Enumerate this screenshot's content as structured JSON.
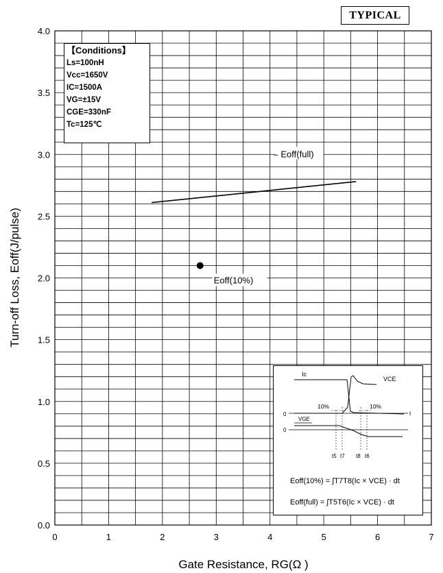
{
  "chart_data": {
    "type": "line",
    "badge": "TYPICAL",
    "xlabel": "Gate Resistance, RG(Ω )",
    "ylabel": "Turn-off Loss, Eoff(J/pulse)",
    "xlim": [
      0,
      7
    ],
    "ylim": [
      0,
      4.0
    ],
    "x_ticks": [
      "0",
      "1",
      "2",
      "3",
      "4",
      "5",
      "6",
      "7"
    ],
    "y_ticks": [
      "0.0",
      "0.5",
      "1.0",
      "1.5",
      "2.0",
      "2.5",
      "3.0",
      "3.5",
      "4.0"
    ],
    "grid": true,
    "series": [
      {
        "name": "Eoff(full)",
        "type": "line",
        "color": "#000000",
        "x": [
          1.8,
          5.6
        ],
        "y": [
          2.61,
          2.78
        ]
      },
      {
        "name": "Eoff(10%)",
        "type": "scatter",
        "color": "#000000",
        "x": [
          2.7
        ],
        "y": [
          2.1
        ]
      }
    ],
    "conditions": {
      "title": "【Conditions】",
      "lines": [
        "Ls=100nH",
        "Vcc=1650V",
        "IC=1500A",
        "VG=±15V",
        "CGE=330nF",
        "Tc=125℃"
      ]
    },
    "inset": {
      "ic_label": "Ic",
      "vce_label": "VCE",
      "vge_label": "VGE",
      "pct_left": "10%",
      "pct_right": "10%",
      "zero_top": "0",
      "zero_bottom": "0",
      "t_label": "t",
      "times": [
        "t5",
        "t7",
        "t8",
        "t6"
      ],
      "formula_10": "Eoff(10%) = ∫T7T8(Ic × VCE) · dt",
      "formula_full": "Eoff(full) = ∫T5T6(Ic × VCE) · dt"
    }
  }
}
